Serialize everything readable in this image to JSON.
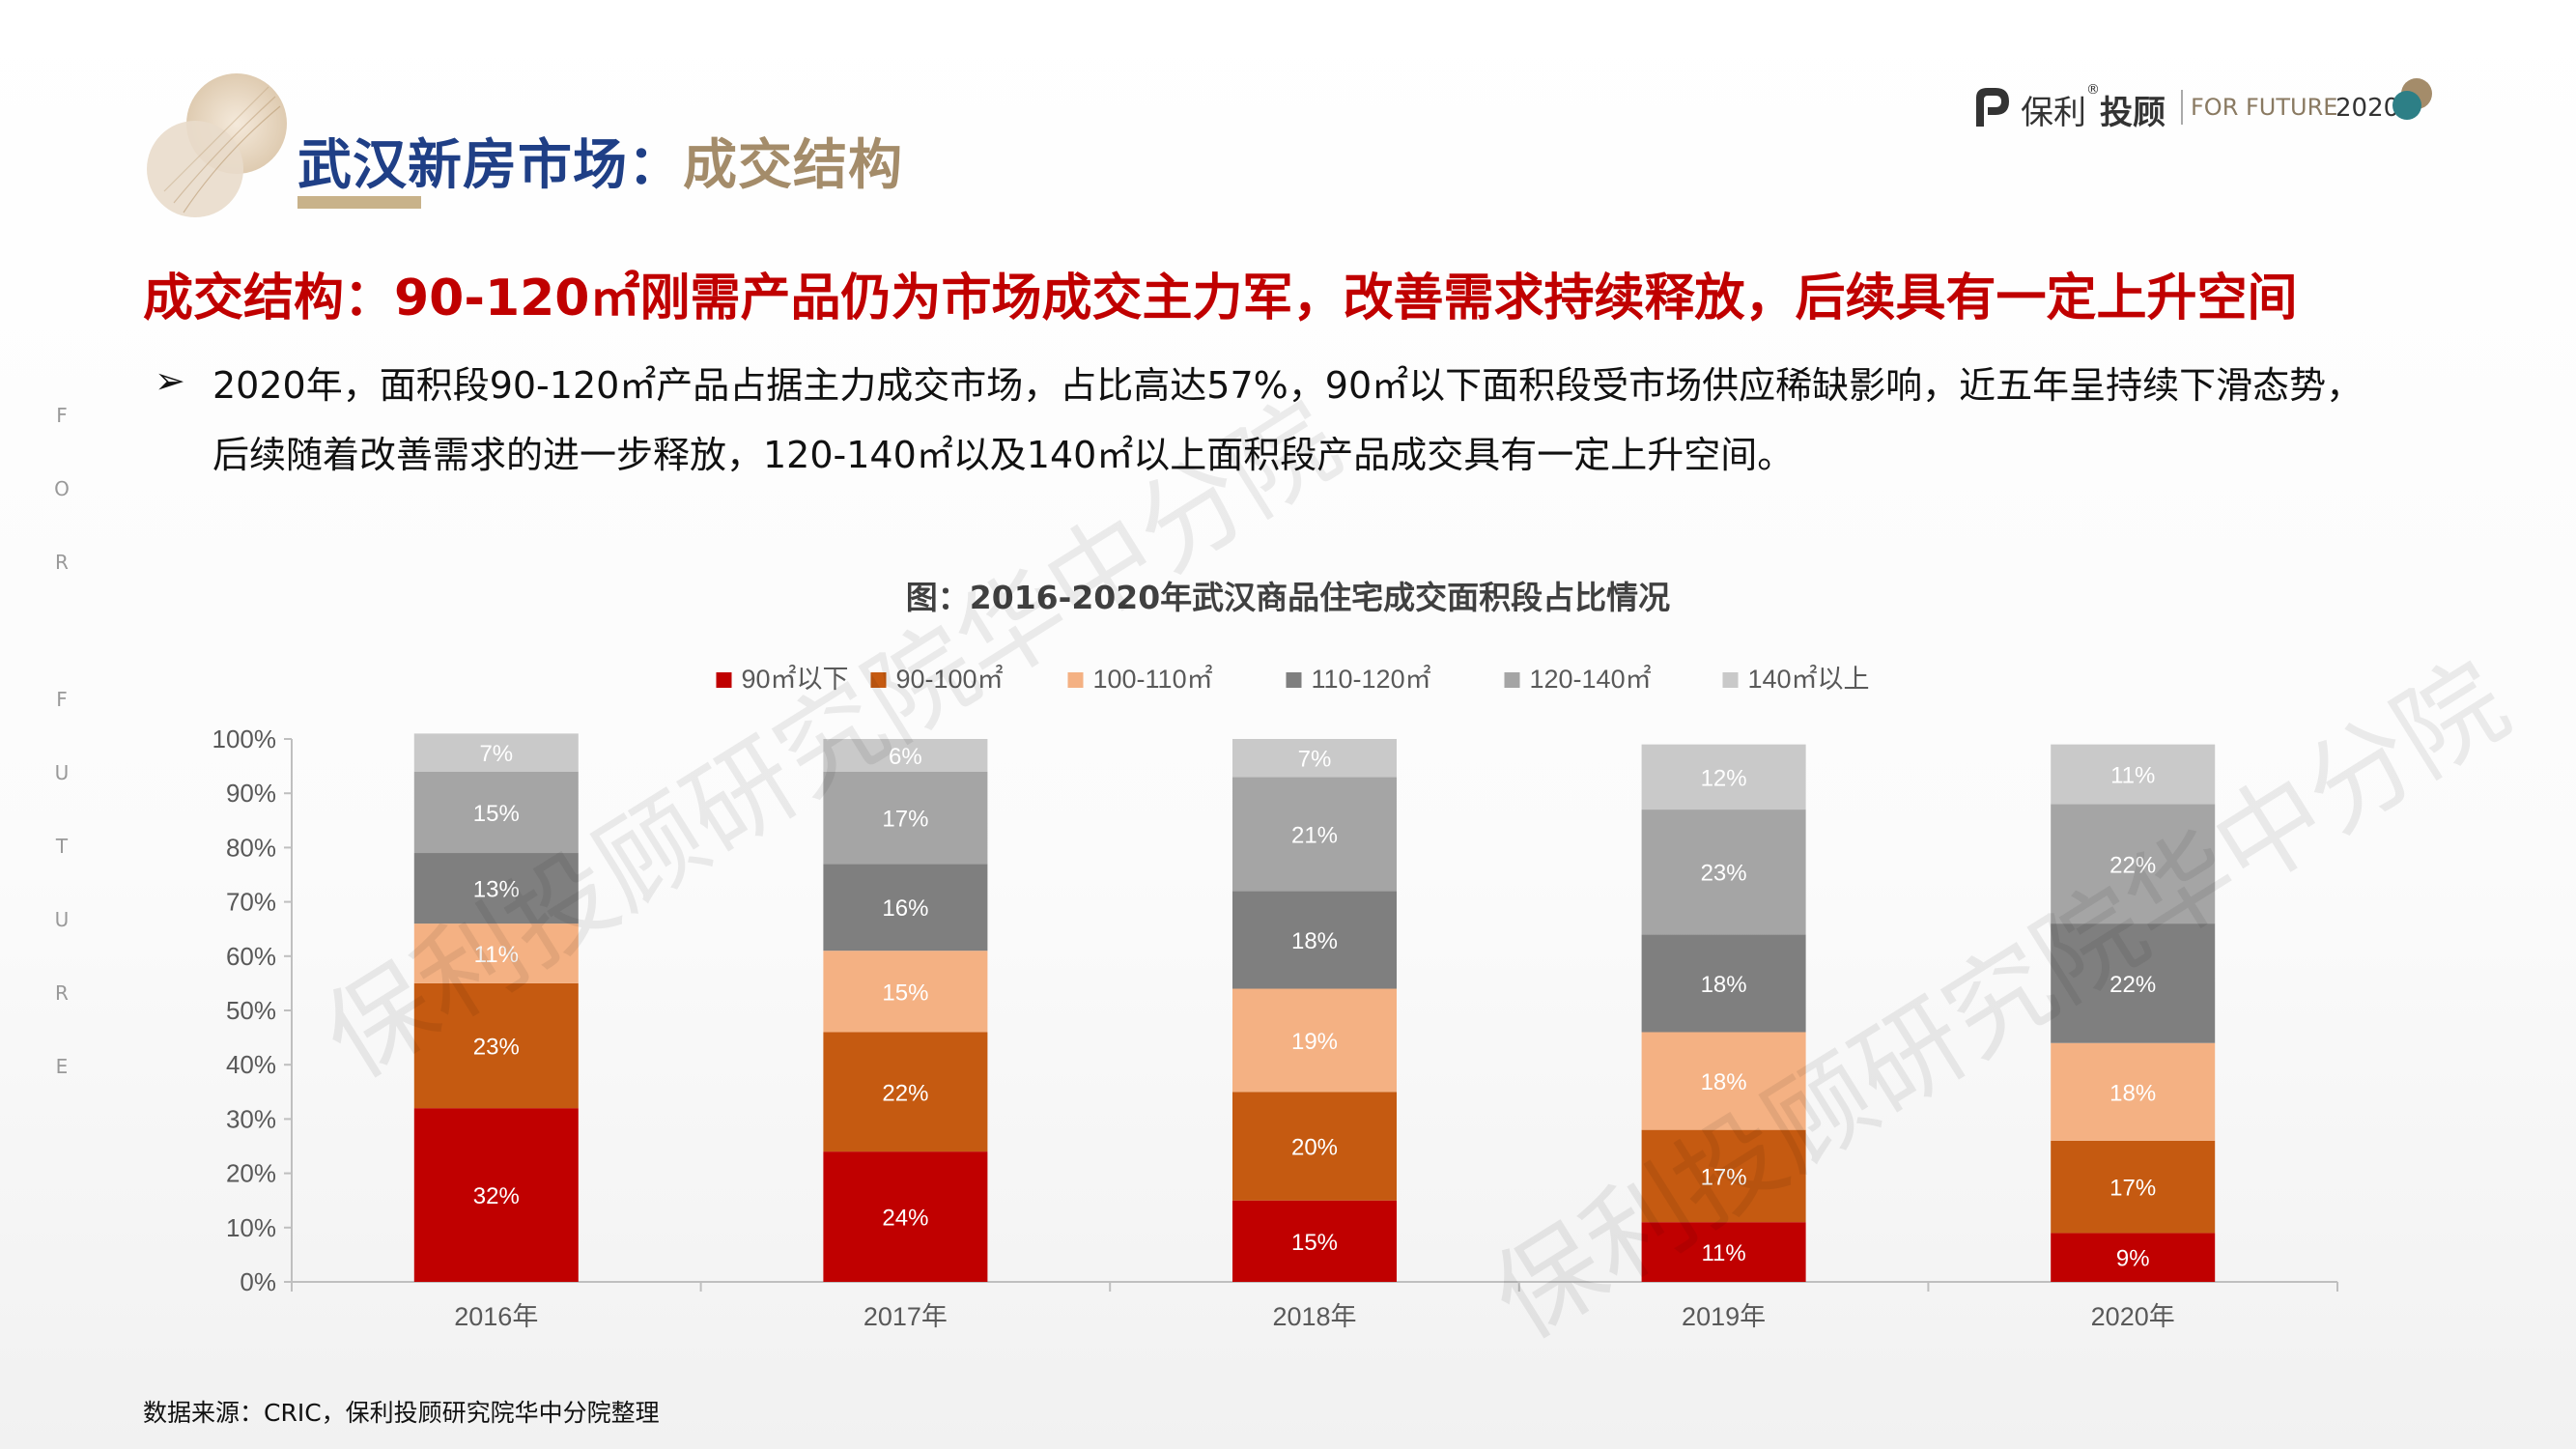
{
  "header": {
    "title_main": "武汉新房市场：",
    "title_accent": "成交结构",
    "brand_name": "保利",
    "brand_name2": "投顾",
    "brand_reg": "®",
    "brand_tagline": "FOR FUTURE",
    "brand_year": "2020"
  },
  "side_text": [
    "F",
    "O",
    "R",
    "F",
    "U",
    "T",
    "U",
    "R",
    "E"
  ],
  "headline": "成交结构：90-120㎡刚需产品仍为市场成交主力军，改善需求持续释放，后续具有一定上升空间",
  "bullet_symbol": "➢",
  "paragraph": {
    "line1": "2020年，面积段90-120㎡产品占据主力成交市场，占比高达57%，90㎡以下面积段受市场供应稀缺影响，近五年呈持续下滑态势，",
    "line2": "后续随着改善需求的进一步释放，120-140㎡以及140㎡以上面积段产品成交具有一定上升空间。"
  },
  "watermark": "保利投顾研究院华中分院",
  "source": "数据来源：CRIC，保利投顾研究院华中分院整理",
  "colors": {
    "title_blue": "#1f3f86",
    "title_gold": "#a48c6a",
    "headline_red": "#c00000"
  },
  "chart_data": {
    "type": "bar",
    "stacked": true,
    "title": "图：2016-2020年武汉商品住宅成交面积段占比情况",
    "categories": [
      "2016年",
      "2017年",
      "2018年",
      "2019年",
      "2020年"
    ],
    "series": [
      {
        "name": "90㎡以下",
        "color": "#c00000",
        "label_color": "#ffffff",
        "values": [
          32,
          24,
          15,
          11,
          9
        ]
      },
      {
        "name": "90-100㎡",
        "color": "#c55a11",
        "label_color": "#ffffff",
        "values": [
          23,
          22,
          20,
          17,
          17
        ]
      },
      {
        "name": "100-110㎡",
        "color": "#f4b183",
        "label_color": "#ffffff",
        "values": [
          11,
          15,
          19,
          18,
          18
        ]
      },
      {
        "name": "110-120㎡",
        "color": "#7f7f7f",
        "label_color": "#ffffff",
        "values": [
          13,
          16,
          18,
          18,
          22
        ]
      },
      {
        "name": "120-140㎡",
        "color": "#a5a5a5",
        "label_color": "#ffffff",
        "values": [
          15,
          17,
          21,
          23,
          22
        ]
      },
      {
        "name": "140㎡以上",
        "color": "#c9c9c9",
        "label_color": "#ffffff",
        "values": [
          7,
          6,
          7,
          12,
          11
        ]
      }
    ],
    "value_suffix": "%",
    "y_ticks": [
      "0%",
      "10%",
      "20%",
      "30%",
      "40%",
      "50%",
      "60%",
      "70%",
      "80%",
      "90%",
      "100%"
    ],
    "ylim": [
      0,
      100
    ],
    "legend_position": "top-center",
    "grid": false
  }
}
